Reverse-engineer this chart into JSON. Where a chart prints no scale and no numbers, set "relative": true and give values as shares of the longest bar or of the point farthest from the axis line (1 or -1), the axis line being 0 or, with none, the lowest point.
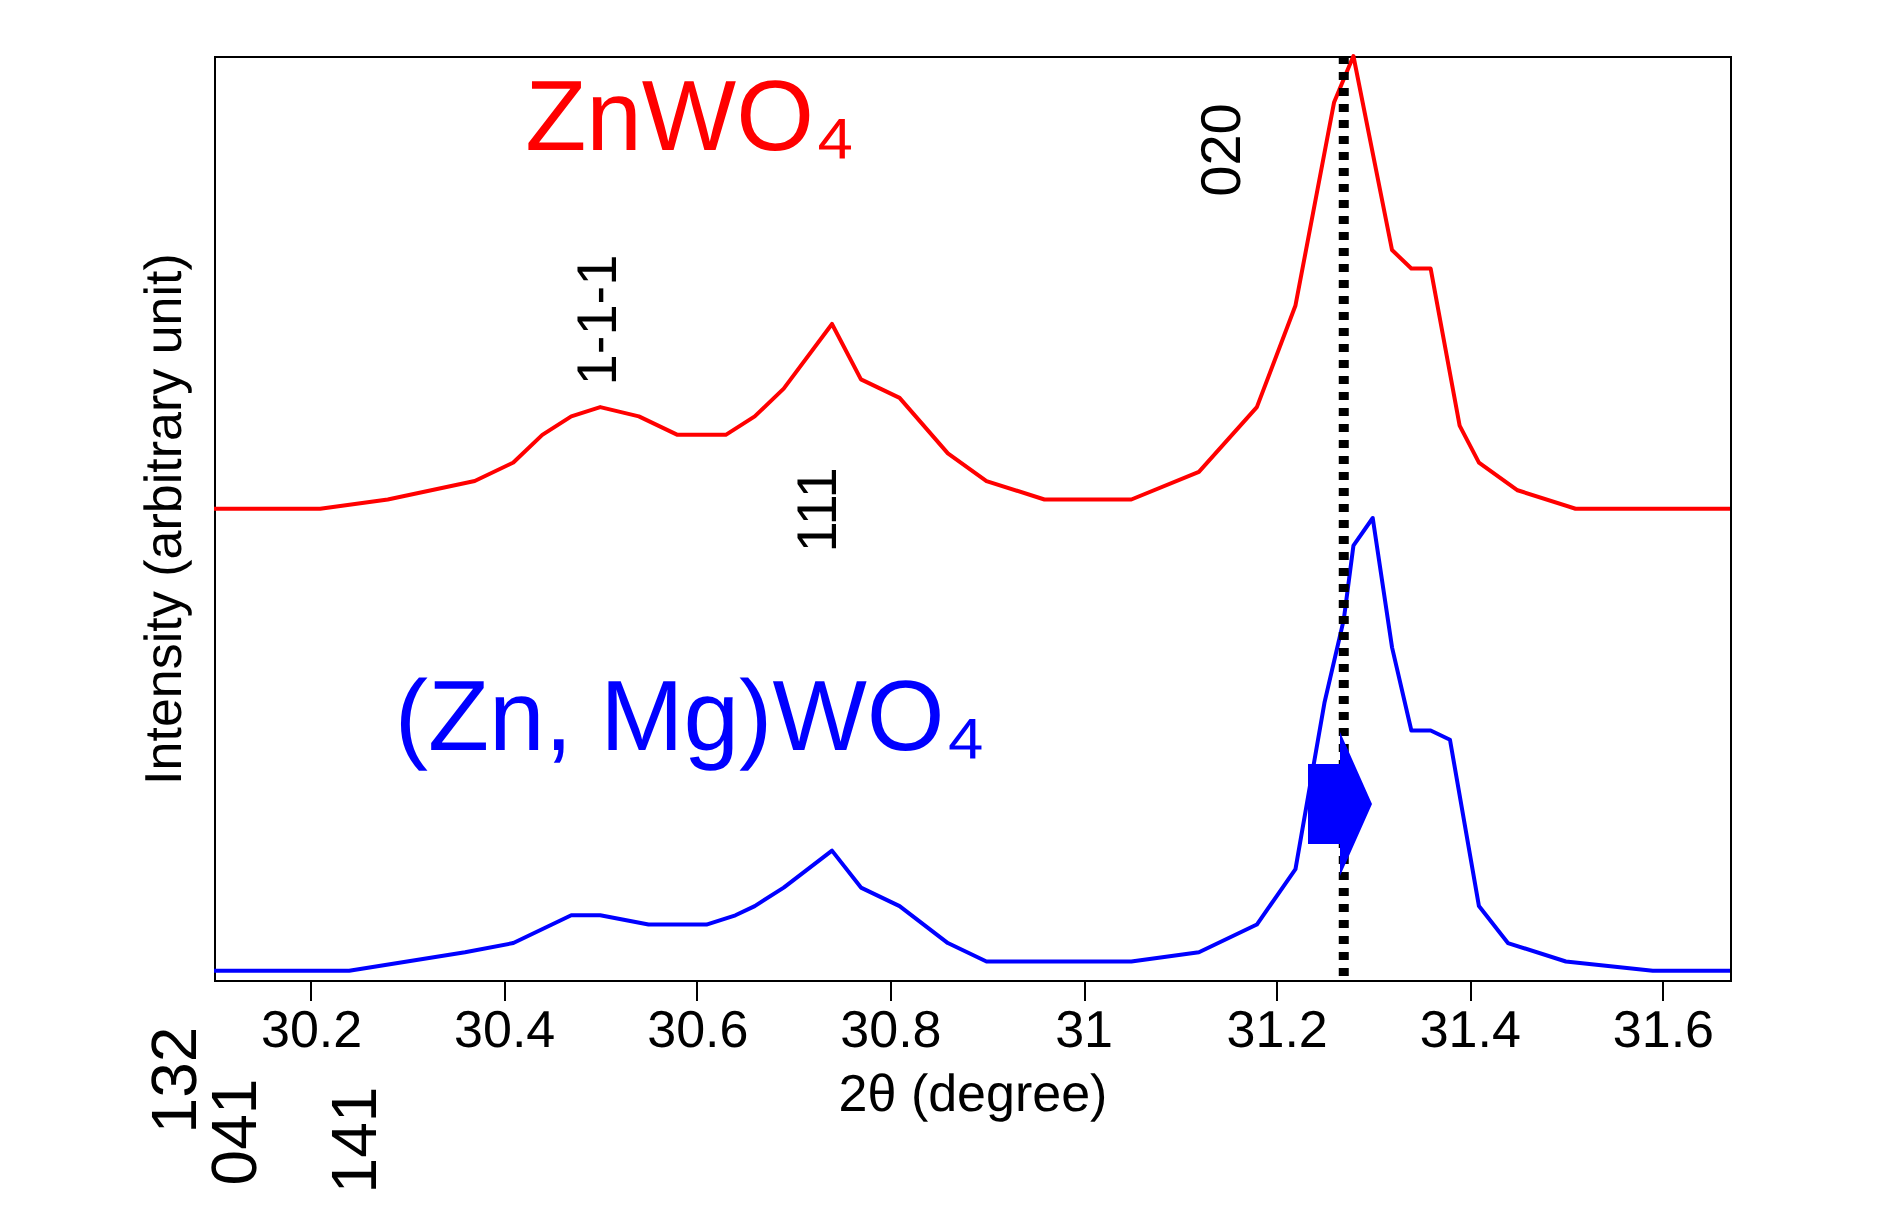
{
  "chart_data": {
    "type": "line",
    "relative": true,
    "xlabel": "2θ (degree)",
    "ylabel": "Intensity (arbitrary unit)",
    "xlim": [
      30.1,
      31.67
    ],
    "xticks": [
      30.2,
      30.4,
      30.6,
      30.8,
      31,
      31.2,
      31.4,
      31.6
    ],
    "grid": false,
    "marker": "none",
    "line_style": "solid",
    "series": [
      {
        "name": "ZnWO₄",
        "color": "#ff0000",
        "x": [
          30.1,
          30.21,
          30.28,
          30.37,
          30.41,
          30.44,
          30.47,
          30.5,
          30.54,
          30.58,
          30.63,
          30.66,
          30.69,
          30.74,
          30.77,
          30.81,
          30.86,
          30.9,
          30.96,
          31.05,
          31.12,
          31.18,
          31.22,
          31.26,
          31.28,
          31.32,
          31.34,
          31.36,
          31.39,
          31.41,
          31.45,
          31.51,
          31.57,
          31.67
        ],
        "values": [
          0.51,
          0.51,
          0.52,
          0.54,
          0.56,
          0.59,
          0.61,
          0.62,
          0.61,
          0.59,
          0.59,
          0.61,
          0.64,
          0.71,
          0.65,
          0.63,
          0.57,
          0.54,
          0.52,
          0.52,
          0.55,
          0.62,
          0.73,
          0.95,
          1,
          0.79,
          0.77,
          0.77,
          0.6,
          0.56,
          0.53,
          0.51,
          0.51,
          0.51
        ]
      },
      {
        "name": "(Zn, Mg)WO₄",
        "color": "#0000ff",
        "x": [
          30.1,
          30.24,
          30.36,
          30.41,
          30.47,
          30.5,
          30.55,
          30.61,
          30.64,
          30.66,
          30.69,
          30.74,
          30.77,
          30.81,
          30.86,
          30.9,
          30.96,
          31.05,
          31.12,
          31.18,
          31.22,
          31.25,
          31.27,
          31.28,
          31.3,
          31.32,
          31.34,
          31.36,
          31.38,
          31.41,
          31.44,
          31.5,
          31.59,
          31.67
        ],
        "values": [
          0.01,
          0.01,
          0.03,
          0.04,
          0.07,
          0.07,
          0.06,
          0.06,
          0.07,
          0.08,
          0.1,
          0.14,
          0.1,
          0.08,
          0.04,
          0.02,
          0.02,
          0.02,
          0.03,
          0.06,
          0.12,
          0.3,
          0.39,
          0.47,
          0.5,
          0.36,
          0.27,
          0.27,
          0.26,
          0.08,
          0.04,
          0.02,
          0.01,
          0.01
        ]
      }
    ],
    "ref_lines": [
      {
        "axis": "x",
        "value": 31.27,
        "color": "#000000",
        "line_style": "dotted"
      }
    ],
    "annotations": [
      "1-1-1",
      "111",
      "020",
      "132",
      "041",
      "141"
    ]
  }
}
